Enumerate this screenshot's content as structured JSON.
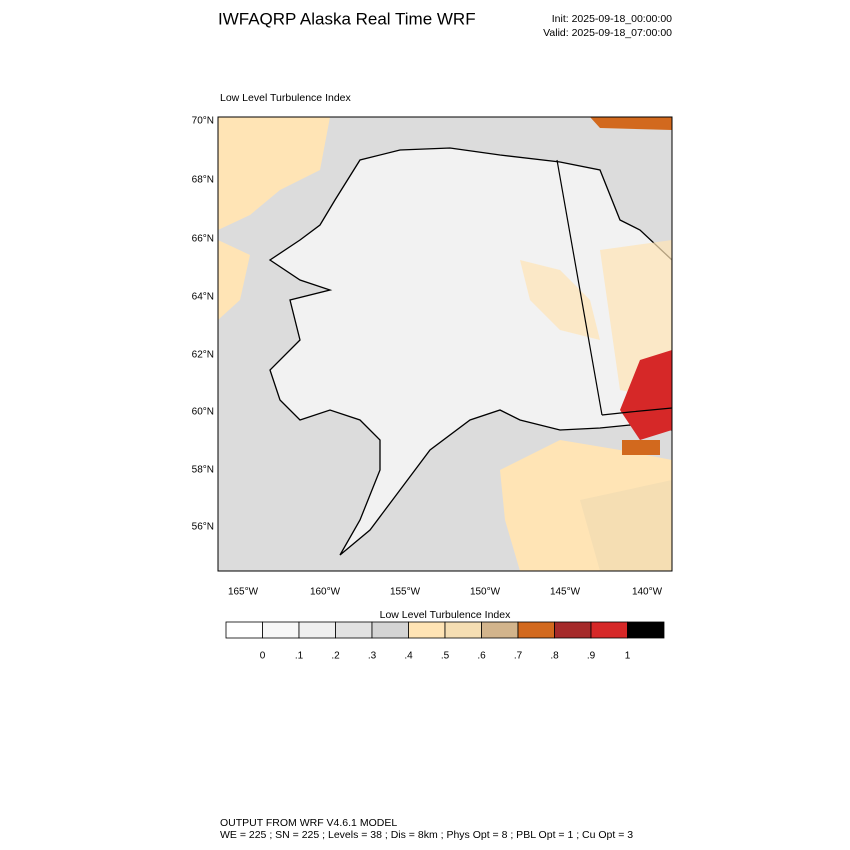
{
  "header": {
    "title": "IWFAQRP Alaska Real Time WRF",
    "init": "Init: 2025-09-18_00:00:00",
    "valid": "Valid: 2025-09-18_07:00:00"
  },
  "map": {
    "label": "Low Level Turbulence Index",
    "lat_labels": [
      "70°N",
      "68°N",
      "66°N",
      "64°N",
      "62°N",
      "60°N",
      "58°N",
      "56°N"
    ],
    "lon_labels": [
      "165°W",
      "160°W",
      "155°W",
      "150°W",
      "145°W",
      "140°W"
    ]
  },
  "colorbar": {
    "title": "Low Level Turbulence Index",
    "colors": [
      "#ffffff",
      "#f7f7f7",
      "#efefef",
      "#e2e2e2",
      "#d4d4d4",
      "#ffe4b5",
      "#f5deb3",
      "#d2b48c",
      "#d2691e",
      "#a52a2a",
      "#d62828",
      "#000000"
    ],
    "labels": [
      "0",
      ".1",
      ".2",
      ".3",
      ".4",
      ".5",
      ".6",
      ".7",
      ".8",
      ".9",
      "1"
    ]
  },
  "footer": {
    "line1": "OUTPUT FROM WRF V4.6.1 MODEL",
    "line2": "WE = 225 ; SN = 225 ; Levels = 38 ; Dis = 8km ; Phys Opt = 8 ; PBL Opt = 1 ; Cu Opt = 3"
  }
}
